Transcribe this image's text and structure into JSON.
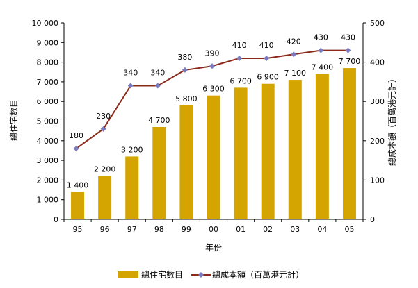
{
  "chart_data": {
    "type": "bar",
    "xlabel": "年份",
    "ylabel_left": "總住宅數目",
    "ylabel_right": "總成本額（百萬港元計）",
    "categories": [
      "95",
      "96",
      "97",
      "98",
      "99",
      "00",
      "01",
      "02",
      "03",
      "04",
      "05"
    ],
    "series": [
      {
        "name": "總住宅數目",
        "type": "bar",
        "axis": "left",
        "color": "#d4a400",
        "values": [
          1400,
          2200,
          3200,
          4700,
          5800,
          6300,
          6700,
          6900,
          7100,
          7400,
          7700
        ],
        "labels": [
          "1 400",
          "2 200",
          "3 200",
          "4 700",
          "5 800",
          "6 300",
          "6 700",
          "6 900",
          "7 100",
          "7 400",
          "7 700"
        ]
      },
      {
        "name": "總成本額（百萬港元計）",
        "type": "line",
        "axis": "right",
        "color": "#8b2a1a",
        "marker_color": "#7b7bbf",
        "values": [
          180,
          230,
          340,
          340,
          380,
          390,
          410,
          410,
          420,
          430,
          430
        ],
        "labels": [
          "180",
          "230",
          "340",
          "340",
          "380",
          "390",
          "410",
          "410",
          "420",
          "430",
          "430"
        ]
      }
    ],
    "y_left": {
      "lim": [
        0,
        10000
      ],
      "ticks": [
        0,
        1000,
        2000,
        3000,
        4000,
        5000,
        6000,
        7000,
        8000,
        9000,
        10000
      ],
      "tick_labels": [
        "0",
        "1 000",
        "2 000",
        "3 000",
        "4 000",
        "5 000",
        "6 000",
        "7 000",
        "8 000",
        "9 000",
        "10 000"
      ]
    },
    "y_right": {
      "lim": [
        0,
        500
      ],
      "ticks": [
        0,
        100,
        200,
        300,
        400,
        500
      ],
      "tick_labels": [
        "0",
        "100",
        "200",
        "300",
        "400",
        "500"
      ]
    },
    "grid": false,
    "legend_position": "bottom"
  }
}
